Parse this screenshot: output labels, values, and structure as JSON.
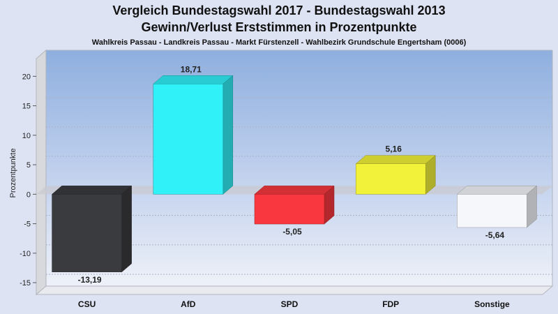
{
  "chart_data": {
    "type": "bar",
    "title": "Vergleich Bundestagswahl 2017 - Bundestagswahl 2013",
    "subtitle": "Gewinn/Verlust Erststimmen in Prozentpunkte",
    "caption": "Wahlkreis Passau - Landkreis Passau - Markt Fürstenzell - Wahlbezirk Grundschule Engertsham (0006)",
    "ylabel": "Prozentpunkte",
    "xlabel": "",
    "ylim": [
      -17,
      23
    ],
    "yticks": [
      20,
      15,
      10,
      5,
      0,
      -5,
      -10,
      -15
    ],
    "categories": [
      "CSU",
      "AfD",
      "SPD",
      "FDP",
      "Sonstige"
    ],
    "values": [
      -13.19,
      18.71,
      -5.05,
      5.16,
      -5.64
    ],
    "value_labels": [
      "-13,19",
      "18,71",
      "-5,05",
      "5,16",
      "-5,64"
    ],
    "colors": [
      "#3a3b3e",
      "#30f0f8",
      "#f8383e",
      "#f2f23a",
      "#f6f7fb"
    ],
    "grid": true,
    "legend": "none"
  }
}
